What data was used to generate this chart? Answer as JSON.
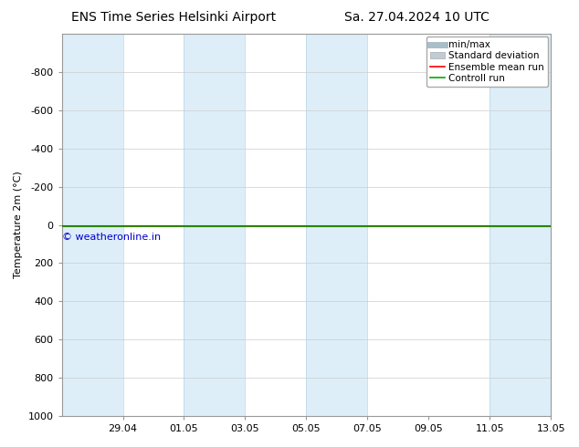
{
  "title_left": "ENS Time Series Helsinki Airport",
  "title_right": "Sa. 27.04.2024 10 UTC",
  "ylabel": "Temperature 2m (°C)",
  "ylim_top": -1000,
  "ylim_bottom": 1000,
  "yticks": [
    -800,
    -600,
    -400,
    -200,
    0,
    200,
    400,
    600,
    800,
    1000
  ],
  "xtick_labels": [
    "29.04",
    "01.05",
    "03.05",
    "05.05",
    "07.05",
    "09.05",
    "11.05",
    "13.05"
  ],
  "xtick_positions": [
    2,
    4,
    6,
    8,
    10,
    12,
    14,
    16
  ],
  "xlim": [
    0,
    16
  ],
  "shade_ranges": [
    [
      0,
      2
    ],
    [
      4,
      6
    ],
    [
      8,
      10
    ],
    [
      14,
      16
    ]
  ],
  "shade_color": "#ddeef8",
  "shade_edge_color": "#b8d4e8",
  "background_color": "#ffffff",
  "control_run_color": "#00aa00",
  "ensemble_mean_color": "#ff0000",
  "copyright_text": "© weatheronline.in",
  "copyright_color": "#0000cc",
  "legend_items": [
    "min/max",
    "Standard deviation",
    "Ensemble mean run",
    "Controll run"
  ],
  "minmax_legend_color": "#a8bec8",
  "std_legend_color": "#c0ccd4",
  "num_days": 16,
  "flat_y_value": 0,
  "title_fontsize": 10,
  "axis_fontsize": 8,
  "legend_fontsize": 7.5
}
